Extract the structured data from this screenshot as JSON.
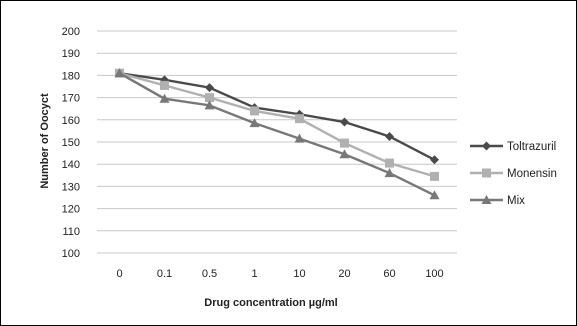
{
  "chart_data": {
    "type": "line",
    "title": "",
    "xlabel": "Drug concentration  µg/ml",
    "ylabel": "Number of Oocyct",
    "categories": [
      "0",
      "0.1",
      "0.5",
      "1",
      "10",
      "20",
      "60",
      "100"
    ],
    "ylim": [
      100,
      200
    ],
    "yticks": [
      100,
      110,
      120,
      130,
      140,
      150,
      160,
      170,
      180,
      190,
      200
    ],
    "grid": true,
    "legend_position": "right",
    "series": [
      {
        "name": "Toltrazuril",
        "values": [
          181,
          178,
          174.5,
          165.5,
          162.5,
          159,
          152.5,
          142
        ],
        "color": "#4a4a4a",
        "marker": "diamond"
      },
      {
        "name": "Monensin",
        "values": [
          181,
          175.5,
          170,
          164,
          160.5,
          149.5,
          140.5,
          134.5
        ],
        "color": "#b0b0b0",
        "marker": "square"
      },
      {
        "name": "Mix",
        "values": [
          181,
          169.5,
          166.5,
          158.5,
          151.5,
          144.5,
          136,
          126
        ],
        "color": "#787878",
        "marker": "triangle"
      }
    ]
  }
}
